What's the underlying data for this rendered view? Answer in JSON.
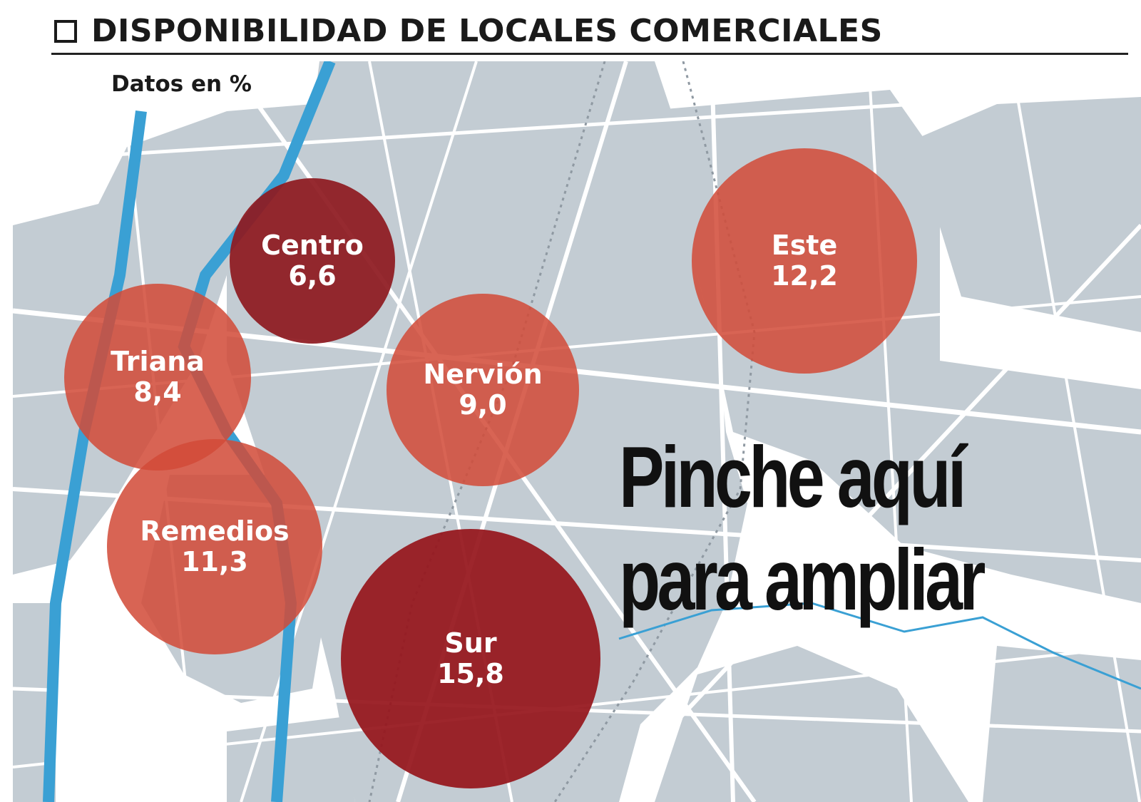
{
  "header": {
    "title": "DISPONIBILIDAD DE LOCALES COMERCIALES"
  },
  "map": {
    "unit_label": "Datos en %",
    "colors": {
      "background": "#ffffff",
      "blocks": "#c3ccd3",
      "roads": "#ffffff",
      "river": "#3aa0d4",
      "zone_dark": "#8e1a20",
      "zone_light": "#d24a38"
    },
    "zones": [
      {
        "name": "Centro",
        "value": "6,6",
        "tone": "dark"
      },
      {
        "name": "Este",
        "value": "12,2",
        "tone": "light"
      },
      {
        "name": "Triana",
        "value": "8,4",
        "tone": "light"
      },
      {
        "name": "Nervión",
        "value": "9,0",
        "tone": "light"
      },
      {
        "name": "Remedios",
        "value": "11,3",
        "tone": "light"
      },
      {
        "name": "Sur",
        "value": "15,8",
        "tone": "dark"
      }
    ]
  },
  "cta": {
    "line1": "Pinche aquí",
    "line2": "para ampliar"
  }
}
